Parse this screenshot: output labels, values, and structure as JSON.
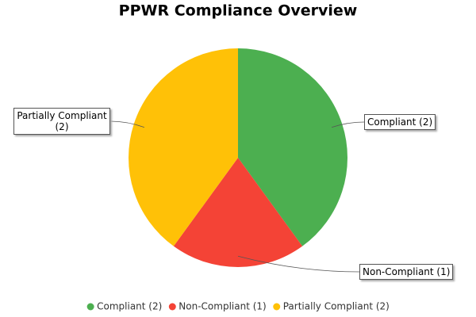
{
  "chart_data": {
    "type": "pie",
    "title": "PPWR Compliance Overview",
    "categories": [
      "Compliant (2)",
      "Non-Compliant (1)",
      "Partially Compliant (2)"
    ],
    "values": [
      2,
      1,
      2
    ],
    "colors": [
      "#4caf50",
      "#f44336",
      "#ffc107"
    ]
  }
}
